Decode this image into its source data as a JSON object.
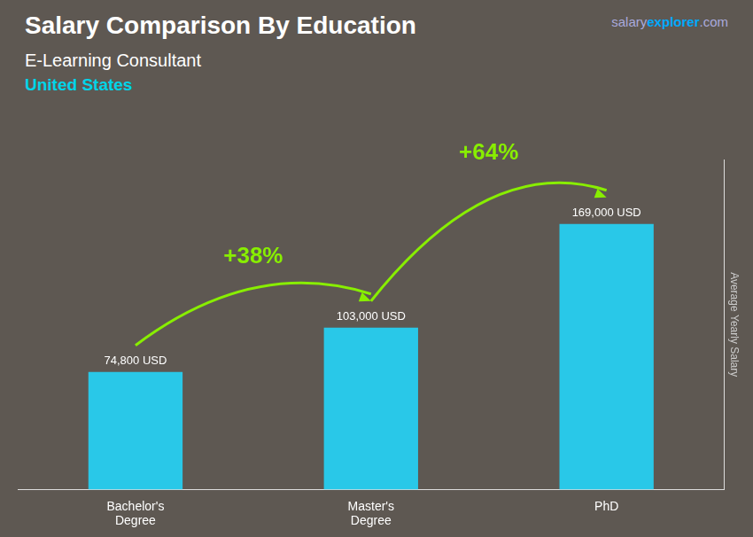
{
  "chart_data": {
    "type": "bar",
    "title": "Salary Comparison By Education",
    "subtitle": [
      {
        "text": "E-Learning Consultant"
      },
      {
        "text": "United States",
        "color": "#00d4e8"
      }
    ],
    "ylabel": "Average Yearly Salary",
    "categories": [
      "Bachelor's\nDegree",
      "Master's\nDegree",
      "PhD"
    ],
    "values": [
      74800,
      103000,
      169000
    ],
    "value_labels": [
      "74,800 USD",
      "103,000 USD",
      "169,000 USD"
    ],
    "data_labels": true,
    "color": "#29c8e8",
    "ylim": [
      0,
      210000
    ],
    "grid": false,
    "tick_labels": "x",
    "annotations": [
      {
        "text": "+38%",
        "color": "#88ee00",
        "from": "Bachelor's\nDegree",
        "to": "Master's\nDegree"
      },
      {
        "text": "+64%",
        "color": "#88ee00",
        "from": "Master's\nDegree",
        "to": "PhD"
      },
      {
        "text": "salary",
        "color": "#aaaadd"
      },
      {
        "text": "explorer",
        "color": "#00aaff"
      },
      {
        "text": ".com",
        "color": "#aaaadd"
      }
    ]
  }
}
